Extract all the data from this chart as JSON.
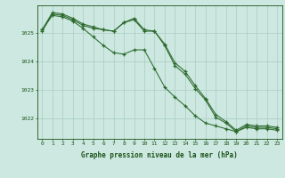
{
  "hours": [
    0,
    1,
    2,
    3,
    4,
    5,
    6,
    7,
    8,
    9,
    10,
    11,
    12,
    13,
    14,
    15,
    16,
    17,
    18,
    19,
    20,
    21,
    22,
    23
  ],
  "line1": [
    1025.05,
    1025.65,
    1025.6,
    1025.45,
    1025.25,
    1025.15,
    1025.1,
    1025.05,
    1025.35,
    1025.45,
    1025.05,
    1025.05,
    1024.55,
    1023.85,
    1023.55,
    1023.05,
    1022.65,
    1022.05,
    1021.85,
    1021.55,
    1021.75,
    1021.7,
    1021.7,
    1021.65
  ],
  "line2": [
    1025.1,
    1025.6,
    1025.55,
    1025.4,
    1025.15,
    1024.85,
    1024.55,
    1024.3,
    1024.25,
    1024.4,
    1024.4,
    1023.75,
    1023.1,
    1022.75,
    1022.45,
    1022.1,
    1021.85,
    1021.75,
    1021.65,
    1021.55,
    1021.7,
    1021.65,
    1021.65,
    1021.6
  ],
  "line3": [
    1025.1,
    1025.7,
    1025.65,
    1025.5,
    1025.3,
    1025.2,
    1025.1,
    1025.05,
    1025.35,
    1025.5,
    1025.1,
    1025.05,
    1024.6,
    1023.95,
    1023.65,
    1023.15,
    1022.7,
    1022.15,
    1021.9,
    1021.6,
    1021.8,
    1021.75,
    1021.75,
    1021.7
  ],
  "line_color": "#2d6a2d",
  "bg_color": "#cce8e0",
  "grid_color": "#aaccc4",
  "axis_color": "#1a5218",
  "xlabel": "Graphe pression niveau de la mer (hPa)",
  "ylim": [
    1021.3,
    1025.95
  ],
  "yticks": [
    1022,
    1023,
    1024,
    1025
  ],
  "xlim": [
    -0.5,
    23.5
  ],
  "xticks": [
    0,
    1,
    2,
    3,
    4,
    5,
    6,
    7,
    8,
    9,
    10,
    11,
    12,
    13,
    14,
    15,
    16,
    17,
    18,
    19,
    20,
    21,
    22,
    23
  ]
}
